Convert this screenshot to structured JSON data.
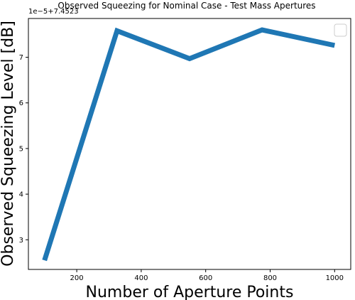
{
  "chart_data": {
    "type": "line",
    "title": "Observed Squeezing for Nominal Case - Test Mass Apertures",
    "xlabel": "Number of Aperture Points",
    "ylabel": "Observed Squeezing Level [dB]",
    "offset_text": "1e−5+7.4523",
    "x": [
      100,
      325,
      550,
      775,
      1000
    ],
    "series": [
      {
        "values": [
          2.55,
          7.58,
          6.97,
          7.6,
          7.26
        ],
        "color": "#1f77b4"
      }
    ],
    "xlim": [
      50,
      1050
    ],
    "ylim": [
      2.35,
      7.85
    ],
    "x_ticks": [
      200,
      400,
      600,
      800,
      1000
    ],
    "y_ticks": [
      3,
      4,
      5,
      6,
      7
    ],
    "legend_position": "upper right",
    "grid": false
  }
}
